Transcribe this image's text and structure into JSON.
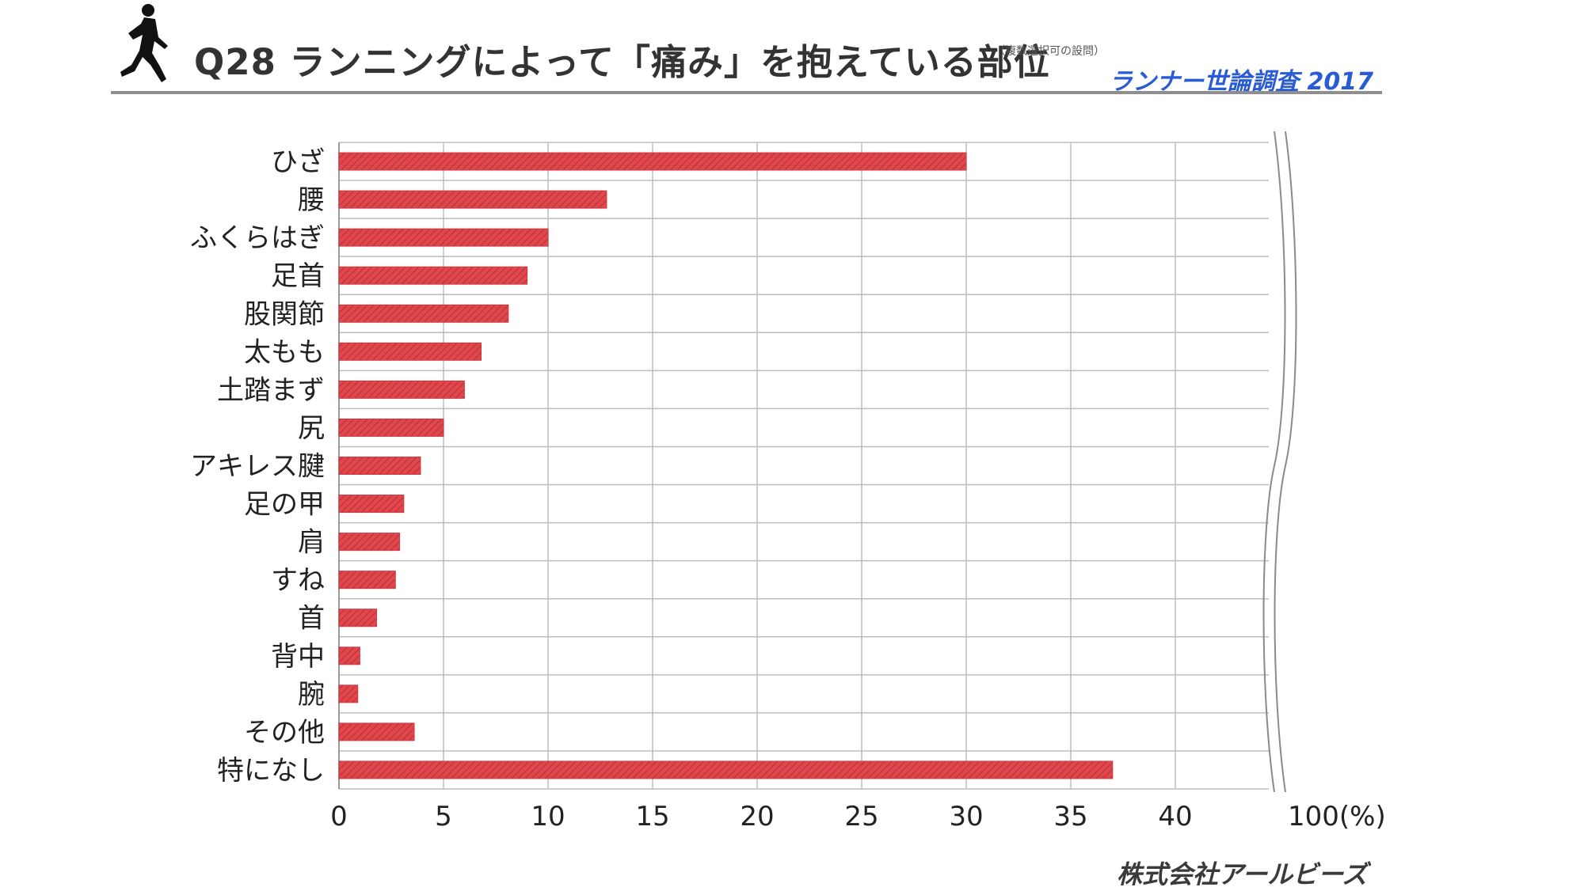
{
  "header": {
    "title": "Q28 ランニングによって「痛み」を抱えている部位",
    "note": "（複数選択可の設問）",
    "survey_name": "ランナー世論調査 2017"
  },
  "footer": {
    "company": "株式会社アールビーズ"
  },
  "colors": {
    "bar": "#e0474c",
    "grid": "#bdbdbd",
    "title": "#333333",
    "survey": "#2a5bd7"
  },
  "icons": {
    "runner": "runner-silhouette-icon"
  },
  "chart_data": {
    "type": "bar",
    "orientation": "horizontal",
    "categories": [
      "ひざ",
      "腰",
      "ふくらはぎ",
      "足首",
      "股関節",
      "太もも",
      "土踏まず",
      "尻",
      "アキレス腱",
      "足の甲",
      "肩",
      "すね",
      "首",
      "背中",
      "腕",
      "その他",
      "特になし"
    ],
    "values": [
      30.0,
      12.8,
      10.0,
      9.0,
      8.1,
      6.8,
      6.0,
      5.0,
      3.9,
      3.1,
      2.9,
      2.7,
      1.8,
      1.0,
      0.9,
      3.6,
      37.0
    ],
    "xticks": [
      "0",
      "5",
      "10",
      "15",
      "20",
      "25",
      "30",
      "35",
      "40",
      "100(%)"
    ],
    "xlim": [
      0,
      45
    ],
    "axis_break": true,
    "grid": true,
    "bar_pattern": "hatched"
  }
}
